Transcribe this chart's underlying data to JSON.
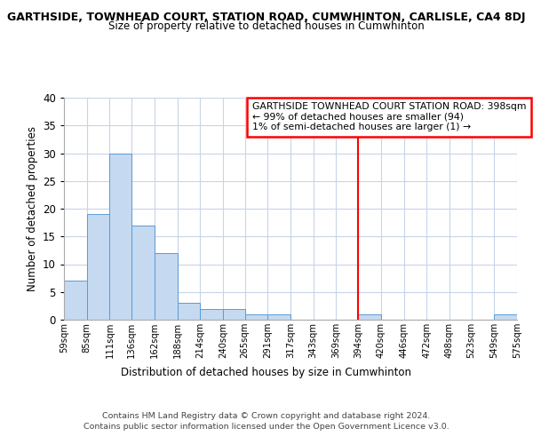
{
  "title_line1": "GARTHSIDE, TOWNHEAD COURT, STATION ROAD, CUMWHINTON, CARLISLE, CA4 8DJ",
  "title_line2": "Size of property relative to detached houses in Cumwhinton",
  "xlabel": "Distribution of detached houses by size in Cumwhinton",
  "ylabel": "Number of detached properties",
  "bin_labels": [
    "59sqm",
    "85sqm",
    "111sqm",
    "136sqm",
    "162sqm",
    "188sqm",
    "214sqm",
    "240sqm",
    "265sqm",
    "291sqm",
    "317sqm",
    "343sqm",
    "369sqm",
    "394sqm",
    "420sqm",
    "446sqm",
    "472sqm",
    "498sqm",
    "523sqm",
    "549sqm",
    "575sqm"
  ],
  "bin_edges": [
    59,
    85,
    111,
    136,
    162,
    188,
    214,
    240,
    265,
    291,
    317,
    343,
    369,
    394,
    420,
    446,
    472,
    498,
    523,
    549,
    575
  ],
  "bar_heights": [
    7,
    19,
    30,
    17,
    12,
    3,
    2,
    2,
    1,
    1,
    0,
    0,
    0,
    1,
    0,
    0,
    0,
    0,
    0,
    1,
    0
  ],
  "bar_color": "#c5d9f0",
  "bar_edge_color": "#5b9bd5",
  "grid_color": "#c8d4e8",
  "vline_x": 394,
  "vline_color": "red",
  "legend_text_line1": "GARTHSIDE TOWNHEAD COURT STATION ROAD: 398sqm",
  "legend_text_line2": "← 99% of detached houses are smaller (94)",
  "legend_text_line3": "1% of semi-detached houses are larger (1) →",
  "legend_box_color": "red",
  "ylim": [
    0,
    40
  ],
  "yticks": [
    0,
    5,
    10,
    15,
    20,
    25,
    30,
    35,
    40
  ],
  "footnote_line1": "Contains HM Land Registry data © Crown copyright and database right 2024.",
  "footnote_line2": "Contains public sector information licensed under the Open Government Licence v3.0.",
  "bg_color": "#ffffff",
  "plot_bg_color": "#ffffff"
}
